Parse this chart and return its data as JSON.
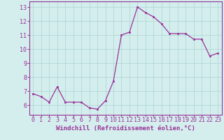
{
  "x": [
    0,
    1,
    2,
    3,
    4,
    5,
    6,
    7,
    8,
    9,
    10,
    11,
    12,
    13,
    14,
    15,
    16,
    17,
    18,
    19,
    20,
    21,
    22,
    23
  ],
  "y": [
    6.8,
    6.6,
    6.2,
    7.3,
    6.2,
    6.2,
    6.2,
    5.8,
    5.7,
    6.3,
    7.7,
    11.0,
    11.2,
    13.0,
    12.6,
    12.3,
    11.8,
    11.1,
    11.1,
    11.1,
    10.7,
    10.7,
    9.5,
    9.7
  ],
  "line_color": "#993399",
  "marker": "s",
  "marker_size": 1.8,
  "bg_color": "#d4eeed",
  "grid_color": "#b0d8d8",
  "xlabel": "Windchill (Refroidissement éolien,°C)",
  "xlabel_fontsize": 6.5,
  "tick_fontsize": 6.0,
  "ylim": [
    5.3,
    13.4
  ],
  "yticks": [
    6,
    7,
    8,
    9,
    10,
    11,
    12,
    13
  ],
  "xlim": [
    -0.5,
    23.5
  ],
  "xticks": [
    0,
    1,
    2,
    3,
    4,
    5,
    6,
    7,
    8,
    9,
    10,
    11,
    12,
    13,
    14,
    15,
    16,
    17,
    18,
    19,
    20,
    21,
    22,
    23
  ],
  "line_width": 0.9,
  "spine_color": "#993399"
}
